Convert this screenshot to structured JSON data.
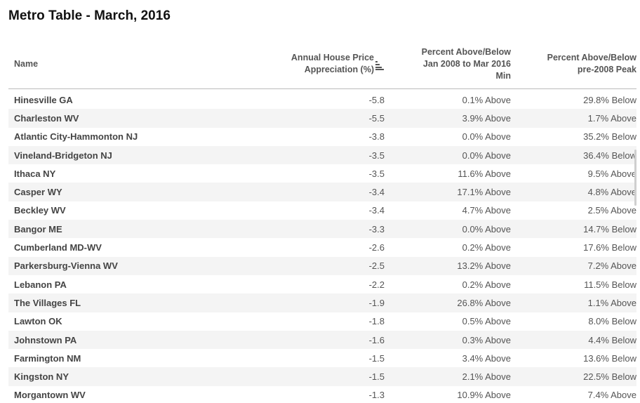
{
  "title": "Metro Table - March, 2016",
  "columns": {
    "name": "Name",
    "appreciation_line1": "Annual House Price",
    "appreciation_line2": "Appreciation (%)",
    "min_line1": "Percent Above/Below",
    "min_line2": "Jan 2008 to Mar 2016",
    "min_line3": "Min",
    "peak_line1": "Percent Above/Below",
    "peak_line2": "pre-2008 Peak"
  },
  "sort_icon": "sort-descending-icon",
  "rows": [
    {
      "name": "Hinesville GA",
      "appreciation": "-5.8",
      "vs_min": "0.1% Above",
      "vs_peak": "29.8% Below"
    },
    {
      "name": "Charleston WV",
      "appreciation": "-5.5",
      "vs_min": "3.9% Above",
      "vs_peak": "1.7% Above"
    },
    {
      "name": "Atlantic City-Hammonton NJ",
      "appreciation": "-3.8",
      "vs_min": "0.0% Above",
      "vs_peak": "35.2% Below"
    },
    {
      "name": "Vineland-Bridgeton NJ",
      "appreciation": "-3.5",
      "vs_min": "0.0% Above",
      "vs_peak": "36.4% Below"
    },
    {
      "name": "Ithaca NY",
      "appreciation": "-3.5",
      "vs_min": "11.6% Above",
      "vs_peak": "9.5% Above"
    },
    {
      "name": "Casper WY",
      "appreciation": "-3.4",
      "vs_min": "17.1% Above",
      "vs_peak": "4.8% Above"
    },
    {
      "name": "Beckley WV",
      "appreciation": "-3.4",
      "vs_min": "4.7% Above",
      "vs_peak": "2.5% Above"
    },
    {
      "name": "Bangor ME",
      "appreciation": "-3.3",
      "vs_min": "0.0% Above",
      "vs_peak": "14.7% Below"
    },
    {
      "name": "Cumberland MD-WV",
      "appreciation": "-2.6",
      "vs_min": "0.2% Above",
      "vs_peak": "17.6% Below"
    },
    {
      "name": "Parkersburg-Vienna WV",
      "appreciation": "-2.5",
      "vs_min": "13.2% Above",
      "vs_peak": "7.2% Above"
    },
    {
      "name": "Lebanon PA",
      "appreciation": "-2.2",
      "vs_min": "0.2% Above",
      "vs_peak": "11.5% Below"
    },
    {
      "name": "The Villages FL",
      "appreciation": "-1.9",
      "vs_min": "26.8% Above",
      "vs_peak": "1.1% Above"
    },
    {
      "name": "Lawton OK",
      "appreciation": "-1.8",
      "vs_min": "0.5% Above",
      "vs_peak": "8.0% Below"
    },
    {
      "name": "Johnstown PA",
      "appreciation": "-1.6",
      "vs_min": "0.3% Above",
      "vs_peak": "4.4% Below"
    },
    {
      "name": "Farmington NM",
      "appreciation": "-1.5",
      "vs_min": "3.4% Above",
      "vs_peak": "13.6% Below"
    },
    {
      "name": "Kingston NY",
      "appreciation": "-1.5",
      "vs_min": "2.1% Above",
      "vs_peak": "22.5% Below"
    },
    {
      "name": "Morgantown WV",
      "appreciation": "-1.3",
      "vs_min": "10.9% Above",
      "vs_peak": "7.4% Above"
    }
  ]
}
